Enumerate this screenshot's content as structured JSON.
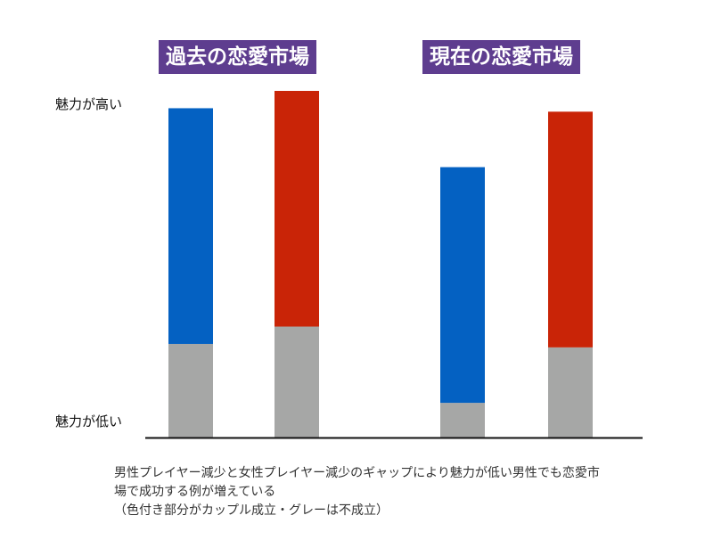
{
  "chart_data": {
    "type": "bar",
    "stacked": true,
    "panels": [
      {
        "title": "過去の恋愛市場",
        "bars": [
          {
            "gray": 27,
            "color": 68,
            "color_hex": "#0461c2"
          },
          {
            "gray": 32,
            "color": 68,
            "color_hex": "#c92407"
          }
        ]
      },
      {
        "title": "現在の恋愛市場",
        "bars": [
          {
            "gray": 10,
            "color": 68,
            "color_hex": "#0461c2"
          },
          {
            "gray": 26,
            "color": 68,
            "color_hex": "#c92407"
          }
        ]
      }
    ],
    "ylabel_high": "魅力が高い",
    "ylabel_low": "魅力が低い",
    "ylim": [
      0,
      100
    ],
    "gray_hex": "#a6a7a6",
    "grid": false,
    "legend": "none"
  },
  "caption": {
    "line1": "男性プレイヤー減少と女性プレイヤー減少のギャップにより魅力が低い男性でも恋愛市",
    "line2": "場で成功する例が増えている",
    "line3": "（色付き部分がカップル成立・グレーは不成立）"
  }
}
